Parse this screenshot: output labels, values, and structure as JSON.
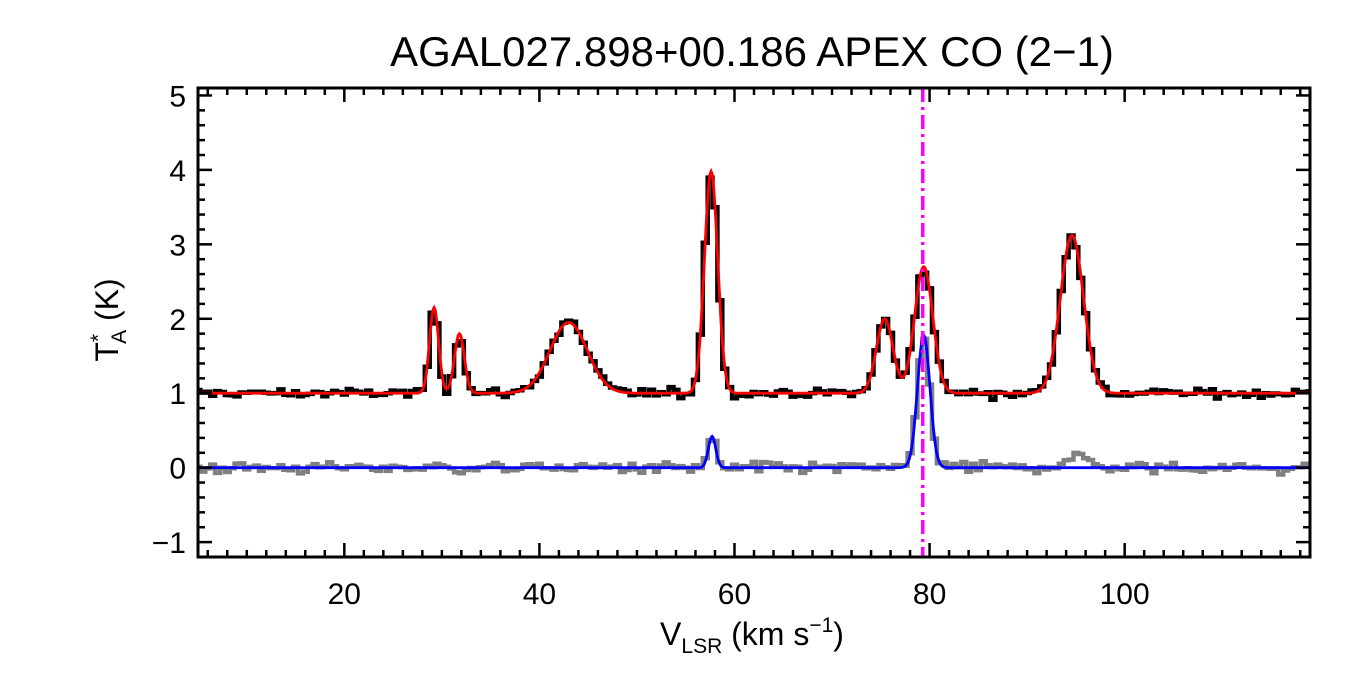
{
  "chart_data": {
    "type": "line",
    "title": "AGAL027.898+00.186  APEX CO (2−1)",
    "xlabel": {
      "main": "V",
      "sub": "LSR",
      "rest": " (km s",
      "sup": "−1",
      "end": ")"
    },
    "ylabel": {
      "main": "T",
      "sup": "*",
      "sub": "A",
      "rest": " (K)"
    },
    "xlim": [
      5,
      119
    ],
    "ylim": [
      -1.2,
      5.1
    ],
    "x_ticks": [
      20,
      40,
      60,
      80,
      100
    ],
    "x_tick_labels": [
      "20",
      "40",
      "60",
      "80",
      "100"
    ],
    "x_minor_step": 2,
    "y_ticks": [
      -1,
      0,
      1,
      2,
      3,
      4,
      5
    ],
    "y_tick_labels": [
      "−1",
      "0",
      "1",
      "2",
      "3",
      "4",
      "5"
    ],
    "y_minor_step": 0.2,
    "grid": false,
    "vline": {
      "x": 79.3,
      "color": "#ff00ff",
      "style": "dash-dot"
    },
    "series": [
      {
        "kind": "histogram",
        "color": "#000000",
        "baseline": 1.0,
        "noise": 0.06,
        "components": [
          {
            "v": 29.2,
            "amp": 1.15,
            "fwhm": 1.1
          },
          {
            "v": 31.8,
            "amp": 0.8,
            "fwhm": 1.2
          },
          {
            "v": 43.0,
            "amp": 0.95,
            "fwhm": 4.5
          },
          {
            "v": 57.6,
            "amp": 2.98,
            "fwhm": 1.6
          },
          {
            "v": 75.4,
            "amp": 1.0,
            "fwhm": 2.0
          },
          {
            "v": 79.4,
            "amp": 1.7,
            "fwhm": 2.2
          },
          {
            "v": 94.6,
            "amp": 2.12,
            "fwhm": 2.8
          }
        ]
      },
      {
        "kind": "line",
        "color": "#ff0000",
        "baseline": 1.0,
        "components": [
          {
            "v": 29.2,
            "amp": 1.15,
            "fwhm": 1.1
          },
          {
            "v": 31.8,
            "amp": 0.8,
            "fwhm": 1.2
          },
          {
            "v": 43.0,
            "amp": 0.95,
            "fwhm": 4.5
          },
          {
            "v": 57.6,
            "amp": 2.98,
            "fwhm": 1.6
          },
          {
            "v": 75.4,
            "amp": 1.0,
            "fwhm": 2.0
          },
          {
            "v": 79.4,
            "amp": 1.7,
            "fwhm": 2.2
          },
          {
            "v": 94.6,
            "amp": 2.12,
            "fwhm": 2.8
          }
        ]
      },
      {
        "kind": "histogram",
        "color": "#808080",
        "baseline": 0.0,
        "noise": 0.07,
        "components": [
          {
            "v": 57.7,
            "amp": 0.42,
            "fwhm": 0.9
          },
          {
            "v": 79.4,
            "amp": 1.78,
            "fwhm": 1.5
          },
          {
            "v": 95.0,
            "amp": 0.15,
            "fwhm": 3.0
          }
        ]
      },
      {
        "kind": "line",
        "color": "#0000ff",
        "baseline": 0.0,
        "components": [
          {
            "v": 57.7,
            "amp": 0.42,
            "fwhm": 0.9
          },
          {
            "v": 79.4,
            "amp": 1.78,
            "fwhm": 1.5
          }
        ]
      }
    ]
  }
}
